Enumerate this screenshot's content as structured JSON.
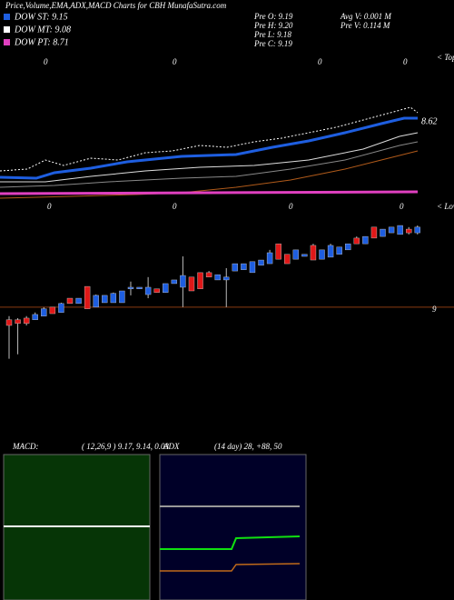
{
  "header": {
    "title": "Price,Volume,EMA,ADX,MACD Charts for CBH MunafaSutra.com"
  },
  "legend": [
    "DOW ST: 9.15",
    "DOW MT: 9.08",
    "DOW PT: 8.71"
  ],
  "stats": [
    "Pre  O: 9.19",
    "Pre  H: 9.20",
    "Pre  L: 9.18",
    "Pre  C: 9.19",
    "Avg V: 0.001 M",
    "Pre  V: 0.114  M"
  ],
  "top_panel": {
    "tops_label": "< Tops",
    "lows_label": "< Lows",
    "last_label": "8.62",
    "top_markers": [
      "0",
      "0",
      "0",
      "0"
    ],
    "low_markers": [
      "0",
      "0",
      "0",
      "0"
    ]
  },
  "chart_data": {
    "type": "candlestick",
    "open": [
      8.969,
      8.969,
      8.973,
      8.969,
      8.978,
      9.0,
      8.987,
      9.022,
      9.009,
      9.051,
      9.0,
      9.011,
      9.011,
      9.011,
      9.045,
      9.045,
      9.031,
      9.045,
      9.036,
      9.058,
      9.049,
      9.074,
      9.085,
      9.085,
      9.067,
      9.067,
      9.089,
      9.092,
      9.085,
      9.103,
      9.107,
      9.156,
      9.13,
      9.118,
      9.125,
      9.152,
      9.118,
      9.123,
      9.13,
      9.141,
      9.17,
      9.156,
      9.197,
      9.174,
      9.183,
      9.179,
      9.192,
      9.183
    ],
    "high": [
      8.978,
      8.973,
      8.978,
      8.987,
      9.0,
      9.0,
      9.011,
      9.022,
      9.022,
      9.051,
      9.031,
      9.029,
      9.036,
      9.04,
      9.063,
      9.049,
      9.074,
      9.045,
      9.058,
      9.067,
      9.125,
      9.074,
      9.085,
      9.089,
      9.08,
      9.096,
      9.107,
      9.107,
      9.112,
      9.116,
      9.141,
      9.156,
      9.13,
      9.141,
      9.13,
      9.156,
      9.141,
      9.156,
      9.148,
      9.156,
      9.174,
      9.174,
      9.197,
      9.192,
      9.197,
      9.201,
      9.197,
      9.201
    ],
    "low": [
      8.873,
      8.884,
      8.955,
      8.969,
      8.978,
      8.984,
      8.987,
      9.009,
      9.009,
      8.996,
      9.0,
      9.011,
      9.011,
      9.011,
      9.029,
      9.045,
      9.022,
      9.036,
      9.036,
      9.058,
      9.0,
      9.04,
      9.045,
      9.074,
      9.067,
      9.0,
      9.089,
      9.092,
      9.085,
      9.103,
      9.107,
      9.118,
      9.107,
      9.118,
      9.125,
      9.116,
      9.118,
      9.123,
      9.13,
      9.141,
      9.156,
      9.156,
      9.17,
      9.174,
      9.183,
      9.179,
      9.179,
      9.179
    ],
    "close": [
      8.955,
      8.96,
      8.96,
      8.982,
      8.996,
      8.984,
      9.009,
      9.009,
      9.022,
      8.996,
      9.029,
      9.029,
      9.034,
      9.04,
      9.049,
      9.049,
      9.049,
      9.036,
      9.058,
      9.067,
      9.078,
      9.04,
      9.045,
      9.074,
      9.08,
      9.074,
      9.107,
      9.107,
      9.112,
      9.116,
      9.134,
      9.118,
      9.107,
      9.141,
      9.13,
      9.116,
      9.141,
      9.152,
      9.148,
      9.156,
      9.156,
      9.174,
      9.17,
      9.192,
      9.197,
      9.201,
      9.183,
      9.197
    ],
    "ylim": [
      8.861,
      9.219
    ],
    "yticks": [
      9
    ],
    "up_color": "#1e5ee0",
    "down_color": "#e01818",
    "tick_line_color": "#8a3a10"
  },
  "macd": {
    "title": "MACD:",
    "params": "( 12,26,9 ) 9.17, 9.14, 0.03"
  },
  "adx": {
    "title": "ADX",
    "params": "(14  day) 28, +88, 50"
  }
}
